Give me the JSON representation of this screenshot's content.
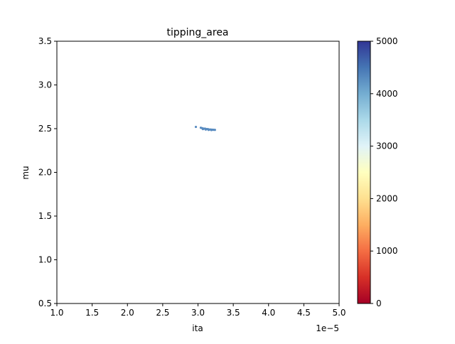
{
  "chart_data": {
    "type": "scatter",
    "title": "tipping_area",
    "xlabel": "ita",
    "ylabel": "mu",
    "x_offset_label": "1e−5",
    "xlim": [
      1.0,
      5.0
    ],
    "ylim": [
      0.5,
      3.5
    ],
    "x_ticks": [
      1.0,
      1.5,
      2.0,
      2.5,
      3.0,
      3.5,
      4.0,
      4.5,
      5.0
    ],
    "x_tick_labels": [
      "1.0",
      "1.5",
      "2.0",
      "2.5",
      "3.0",
      "3.5",
      "4.0",
      "4.5",
      "5.0"
    ],
    "y_ticks": [
      0.5,
      1.0,
      1.5,
      2.0,
      2.5,
      3.0,
      3.5
    ],
    "y_tick_labels": [
      "0.5",
      "1.0",
      "1.5",
      "2.0",
      "2.5",
      "3.0",
      "3.5"
    ],
    "grid": false,
    "colorbar": {
      "colormap": "RdYlBu",
      "range": [
        0,
        5000
      ],
      "ticks": [
        0,
        1000,
        2000,
        3000,
        4000,
        5000
      ],
      "tick_labels": [
        "0",
        "1000",
        "2000",
        "3000",
        "4000",
        "5000"
      ],
      "colors": [
        "#a50026",
        "#d73027",
        "#f46d43",
        "#fdae61",
        "#fee090",
        "#ffffbf",
        "#e0f3f8",
        "#abd9e9",
        "#74add1",
        "#4575b4",
        "#313695"
      ]
    },
    "points": [
      {
        "x": 2.97,
        "y": 2.52,
        "c": 4300
      },
      {
        "x": 3.04,
        "y": 2.51,
        "c": 4300
      },
      {
        "x": 3.06,
        "y": 2.505,
        "c": 4300
      },
      {
        "x": 3.08,
        "y": 2.5,
        "c": 4300
      },
      {
        "x": 3.1,
        "y": 2.5,
        "c": 4300
      },
      {
        "x": 3.12,
        "y": 2.495,
        "c": 4300
      },
      {
        "x": 3.14,
        "y": 2.495,
        "c": 4300
      },
      {
        "x": 3.16,
        "y": 2.49,
        "c": 4300
      },
      {
        "x": 3.18,
        "y": 2.49,
        "c": 4300
      },
      {
        "x": 3.2,
        "y": 2.488,
        "c": 4300
      },
      {
        "x": 3.22,
        "y": 2.487,
        "c": 4300
      },
      {
        "x": 3.24,
        "y": 2.486,
        "c": 4300
      },
      {
        "x": 3.07,
        "y": 2.495,
        "c": 4300
      },
      {
        "x": 3.11,
        "y": 2.49,
        "c": 4300
      },
      {
        "x": 3.15,
        "y": 2.486,
        "c": 4300
      },
      {
        "x": 3.19,
        "y": 2.484,
        "c": 4300
      }
    ]
  }
}
